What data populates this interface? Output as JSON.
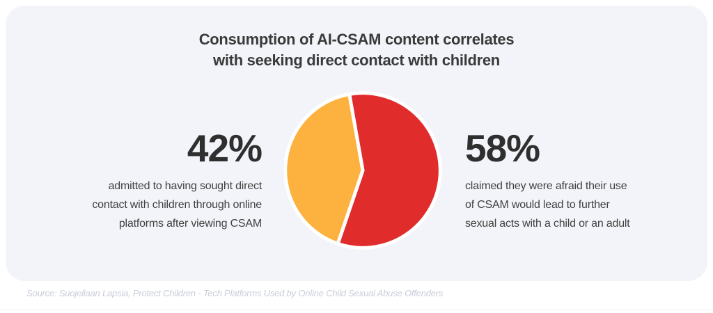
{
  "title": {
    "line1": "Consumption of AI-CSAM content correlates",
    "line2": "with seeking direct contact with children",
    "full": "Consumption of AI-CSAM content correlates\nwith seeking direct contact with children"
  },
  "stats": {
    "left": {
      "value": "42%",
      "description_lines": [
        "admitted to having sought direct",
        "contact with children through online",
        "platforms after viewing CSAM"
      ]
    },
    "right": {
      "value": "58%",
      "description_lines": [
        "claimed they were afraid their use",
        "of CSAM would lead to further",
        "sexual acts with a child or an adult"
      ]
    }
  },
  "chart_data": {
    "type": "pie",
    "title": "Consumption of AI-CSAM content correlates with seeking direct contact with children",
    "slices": [
      {
        "name": "claimed they were afraid their use of CSAM would lead to further sexual acts with a child or an adult",
        "value": 58,
        "color": "#e12c2c"
      },
      {
        "name": "admitted to having sought direct contact with children through online platforms after viewing CSAM",
        "value": 42,
        "color": "#fdb13e"
      }
    ],
    "rotation_deg": -10,
    "slice_gap_stroke": "#ffffff",
    "slice_gap_width": 4.5,
    "legend": "none"
  },
  "source": "Source: Suojellaan Lapsia, Protect Children - Tech Platforms Used by Online Child Sexual Abuse Offenders",
  "colors": {
    "red": "#e12c2c",
    "orange": "#fdb13e",
    "card_background": "#f2f4f9",
    "title_text": "#3a3a3a",
    "body_text": "#414141",
    "source_text": "#c9cdd9"
  }
}
